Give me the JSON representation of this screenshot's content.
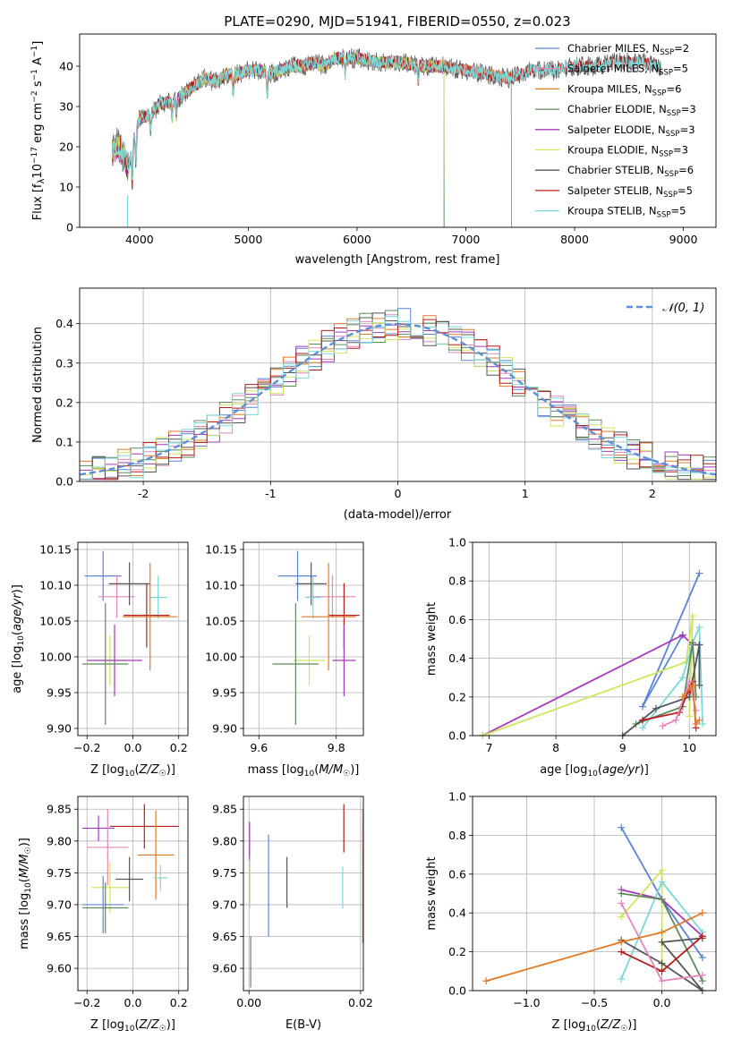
{
  "figure": {
    "title": "PLATE=0290, MJD=51941, FIBERID=0550, z=0.023"
  },
  "chart_data": [
    {
      "id": "spectrum",
      "type": "line",
      "xlabel": "wavelength [Angstrom, rest frame]",
      "ylabel": "Flux [f_λ 10^-17 erg cm^-2 s^-1 A^-1]",
      "xlim": [
        3450,
        9300
      ],
      "ylim": [
        0,
        48
      ],
      "xticks": [
        4000,
        5000,
        6000,
        7000,
        8000,
        9000
      ],
      "yticks": [
        0,
        10,
        20,
        30,
        40
      ],
      "grid": false,
      "legend_position": "top-right",
      "observed_spectrum": {
        "x": [
          3750,
          3800,
          3900,
          3950,
          4000,
          4100,
          4200,
          4300,
          4400,
          4500,
          4600,
          4700,
          4800,
          4900,
          5000,
          5100,
          5200,
          5300,
          5400,
          5500,
          5600,
          5700,
          5800,
          5900,
          6000,
          6200,
          6400,
          6600,
          6800,
          7000,
          7200,
          7400,
          7600,
          7800,
          8000,
          8200,
          8400,
          8600,
          8800
        ],
        "y": [
          18,
          21,
          15,
          22,
          27,
          28,
          31,
          31,
          33,
          35,
          37,
          36,
          38,
          38,
          39,
          39,
          38,
          39,
          40,
          40,
          41,
          40,
          42,
          42,
          42,
          41,
          41,
          40,
          40,
          39,
          38,
          37,
          39,
          39,
          40,
          40,
          41,
          41,
          40
        ]
      },
      "series": [
        {
          "name": "Chabrier MILES, N_SSP=2",
          "color": "#5b84d8",
          "end_wavelength": 7400,
          "dropout_wavelength": null
        },
        {
          "name": "Salpeter MILES, N_SSP=5",
          "color": "#e487bb",
          "end_wavelength": 7400,
          "dropout_wavelength": null
        },
        {
          "name": "Kroupa MILES, N_SSP=6",
          "color": "#e07b26",
          "end_wavelength": 7420,
          "dropout_wavelength": 7420
        },
        {
          "name": "Chabrier ELODIE, N_SSP=3",
          "color": "#5d8a5c",
          "end_wavelength": 6800,
          "dropout_wavelength": 6800
        },
        {
          "name": "Salpeter ELODIE, N_SSP=3",
          "color": "#a33ab9",
          "end_wavelength": 6800,
          "dropout_wavelength": null
        },
        {
          "name": "Kroupa ELODIE, N_SSP=3",
          "color": "#cfe55c",
          "end_wavelength": 6800,
          "dropout_wavelength": 6795
        },
        {
          "name": "Chabrier STELIB, N_SSP=6",
          "color": "#555555",
          "end_wavelength": 8800,
          "dropout_wavelength": null
        },
        {
          "name": "Salpeter STELIB, N_SSP=5",
          "color": "#b81d1d",
          "end_wavelength": 8800,
          "dropout_wavelength": null
        },
        {
          "name": "Kroupa STELIB, N_SSP=5",
          "color": "#7ad8d8",
          "end_wavelength": 8800,
          "dropout_wavelength": null
        }
      ]
    },
    {
      "id": "residuals",
      "type": "bar",
      "xlabel": "(data-model)/error",
      "ylabel": "Normed distribution",
      "xlim": [
        -2.5,
        2.5
      ],
      "ylim": [
        0,
        0.49
      ],
      "xticks": [
        -2,
        -1,
        0,
        1,
        2
      ],
      "yticks": [
        0.0,
        0.1,
        0.2,
        0.3,
        0.4
      ],
      "grid": true,
      "legend": "𝒩(0, 1)",
      "legend_position": "top-right",
      "gaussian_color": "#5b8fd8"
    },
    {
      "id": "age_vs_Z",
      "type": "scatter",
      "xlabel": "Z [log10(Z/Z☉)]",
      "ylabel": "age [log10(age/yr)]",
      "xlim": [
        -0.24,
        0.24
      ],
      "ylim": [
        9.89,
        10.16
      ],
      "xticks": [
        -0.2,
        0.0,
        0.2
      ],
      "xticklabels": [
        "−0.2",
        "0.0",
        "0.2"
      ],
      "yticks": [
        9.9,
        9.95,
        10.0,
        10.05,
        10.1,
        10.15
      ],
      "yticklabels": [
        "9.90",
        "9.95",
        "10.00",
        "10.05",
        "10.10",
        "10.15"
      ],
      "grid": true,
      "points": [
        {
          "color": "#5b84d8",
          "x": -0.13,
          "xerr": 0.08,
          "y": 10.113,
          "yerr": 0.035
        },
        {
          "color": "#e487bb",
          "x": -0.07,
          "xerr": 0.08,
          "y": 10.084,
          "yerr": 0.03
        },
        {
          "color": "#555555",
          "x": -0.015,
          "xerr": 0.09,
          "y": 10.102,
          "yerr": 0.03
        },
        {
          "color": "#7ad8d8",
          "x": 0.11,
          "xerr": 0.04,
          "y": 10.083,
          "yerr": 0.03
        },
        {
          "color": "#b81d1d",
          "x": 0.06,
          "xerr": 0.1,
          "y": 10.058,
          "yerr": 0.045
        },
        {
          "color": "#e07b26",
          "x": 0.075,
          "xerr": 0.12,
          "y": 10.056,
          "yerr": 0.075
        },
        {
          "color": "#cfe55c",
          "x": -0.1,
          "xerr": 0.07,
          "y": 9.995,
          "yerr": 0.035
        },
        {
          "color": "#a33ab9",
          "x": -0.08,
          "xerr": 0.12,
          "y": 9.995,
          "yerr": 0.05
        },
        {
          "color": "#5d8a5c",
          "x": -0.12,
          "xerr": 0.1,
          "y": 9.99,
          "yerr": 0.085
        }
      ]
    },
    {
      "id": "age_vs_mass",
      "type": "scatter",
      "xlabel": "mass [log10(M/M☉)]",
      "ylabel": "",
      "xlim": [
        9.56,
        9.87
      ],
      "ylim": [
        9.89,
        10.16
      ],
      "xticks": [
        9.6,
        9.8
      ],
      "xticklabels": [
        "9.6",
        "9.8"
      ],
      "yticks": [
        9.9,
        9.95,
        10.0,
        10.05,
        10.1,
        10.15
      ],
      "yticklabels": [
        "9.90",
        "9.95",
        "10.00",
        "10.05",
        "10.10",
        "10.15"
      ],
      "grid": true,
      "points": [
        {
          "color": "#5b84d8",
          "x": 9.7,
          "xerr": 0.05,
          "y": 10.113,
          "yerr": 0.035
        },
        {
          "color": "#e487bb",
          "x": 9.79,
          "xerr": 0.06,
          "y": 10.084,
          "yerr": 0.03
        },
        {
          "color": "#555555",
          "x": 9.735,
          "xerr": 0.04,
          "y": 10.102,
          "yerr": 0.03
        },
        {
          "color": "#7ad8d8",
          "x": 9.74,
          "xerr": 0.02,
          "y": 10.083,
          "yerr": 0.03
        },
        {
          "color": "#b81d1d",
          "x": 9.82,
          "xerr": 0.04,
          "y": 10.058,
          "yerr": 0.045
        },
        {
          "color": "#e07b26",
          "x": 9.78,
          "xerr": 0.07,
          "y": 10.056,
          "yerr": 0.075
        },
        {
          "color": "#cfe55c",
          "x": 9.73,
          "xerr": 0.04,
          "y": 9.995,
          "yerr": 0.035
        },
        {
          "color": "#a33ab9",
          "x": 9.82,
          "xerr": 0.03,
          "y": 9.995,
          "yerr": 0.05
        },
        {
          "color": "#5d8a5c",
          "x": 9.695,
          "xerr": 0.06,
          "y": 9.99,
          "yerr": 0.085
        }
      ]
    },
    {
      "id": "mass_vs_Z",
      "type": "scatter",
      "xlabel": "Z [log10(Z/Z☉)]",
      "ylabel": "mass [log10(M/M☉)]",
      "xlim": [
        -0.24,
        0.24
      ],
      "ylim": [
        9.565,
        9.87
      ],
      "xticks": [
        -0.2,
        0.0,
        0.2
      ],
      "xticklabels": [
        "−0.2",
        "0.0",
        "0.2"
      ],
      "yticks": [
        9.6,
        9.65,
        9.7,
        9.75,
        9.8,
        9.85
      ],
      "yticklabels": [
        "9.60",
        "9.65",
        "9.70",
        "9.75",
        "9.80",
        "9.85"
      ],
      "grid": true,
      "points": [
        {
          "color": "#b81d1d",
          "x": 0.05,
          "xerr": 0.15,
          "y": 9.823,
          "yerr": 0.035
        },
        {
          "color": "#a33ab9",
          "x": -0.15,
          "xerr": 0.07,
          "y": 9.82,
          "yerr": 0.02
        },
        {
          "color": "#e487bb",
          "x": -0.11,
          "xerr": 0.09,
          "y": 9.79,
          "yerr": 0.06
        },
        {
          "color": "#e07b26",
          "x": 0.1,
          "xerr": 0.08,
          "y": 9.778,
          "yerr": 0.07
        },
        {
          "color": "#7ad8d8",
          "x": 0.12,
          "xerr": 0.03,
          "y": 9.742,
          "yerr": 0.02
        },
        {
          "color": "#555555",
          "x": -0.015,
          "xerr": 0.06,
          "y": 9.74,
          "yerr": 0.035
        },
        {
          "color": "#cfe55c",
          "x": -0.1,
          "xerr": 0.08,
          "y": 9.727,
          "yerr": 0.04
        },
        {
          "color": "#5b84d8",
          "x": -0.13,
          "xerr": 0.09,
          "y": 9.7,
          "yerr": 0.045
        },
        {
          "color": "#5d8a5c",
          "x": -0.12,
          "xerr": 0.1,
          "y": 9.695,
          "yerr": 0.04
        }
      ]
    },
    {
      "id": "mass_vs_ebv",
      "type": "scatter",
      "xlabel": "E(B-V)",
      "ylabel": "",
      "xlim": [
        -0.001,
        0.0205
      ],
      "ylim": [
        9.565,
        9.87
      ],
      "xticks": [
        0.0,
        0.02
      ],
      "xticklabels": [
        "0.00",
        "0.02"
      ],
      "yticks": [
        9.6,
        9.65,
        9.7,
        9.75,
        9.8,
        9.85
      ],
      "yticklabels": [
        "9.60",
        "9.65",
        "9.70",
        "9.75",
        "9.80",
        "9.85"
      ],
      "grid": true,
      "points": [
        {
          "color": "#a33ab9",
          "x": 0.0001,
          "y": 9.8,
          "yerr": 0.03
        },
        {
          "color": "#cfe55c",
          "x": 0.0002,
          "y": 9.735,
          "yerr": 0.04
        },
        {
          "color": "#5d8a5c",
          "x": 0.0003,
          "y": 9.61,
          "yerr": 0.04
        },
        {
          "color": "#5b84d8",
          "x": 0.0035,
          "y": 9.73,
          "yerr": 0.08
        },
        {
          "color": "#555555",
          "x": 0.0068,
          "y": 9.735,
          "yerr": 0.04
        },
        {
          "color": "#7ad8d8",
          "x": 0.0168,
          "y": 9.727,
          "yerr": 0.033
        },
        {
          "color": "#b81d1d",
          "x": 0.017,
          "y": 9.82,
          "yerr": 0.038
        },
        {
          "color": "#e07b26",
          "x": 0.0204,
          "y": 9.73,
          "yerr": 0.09
        },
        {
          "color": "#e487bb",
          "x": 0.0204,
          "y": 9.82,
          "yerr": 0.03
        }
      ]
    },
    {
      "id": "weight_vs_age",
      "type": "line",
      "xlabel": "age  [log10(age/yr)]",
      "ylabel": "mass weight",
      "xlim": [
        6.75,
        10.4
      ],
      "ylim": [
        0,
        1.0
      ],
      "xticks": [
        7,
        8,
        9,
        10
      ],
      "yticks": [
        0.0,
        0.2,
        0.4,
        0.6,
        0.8,
        1.0
      ],
      "grid": true,
      "series": [
        {
          "color": "#5b84d8",
          "x": [
            10.15,
            9.3,
            9.9
          ],
          "y": [
            0.84,
            0.15,
            0.52
          ]
        },
        {
          "color": "#a33ab9",
          "x": [
            6.9,
            9.9,
            10.05,
            10.15
          ],
          "y": [
            0.0,
            0.52,
            0.47,
            0.47
          ]
        },
        {
          "color": "#cfe55c",
          "x": [
            6.9,
            9.95,
            10.05,
            10.0
          ],
          "y": [
            0.0,
            0.38,
            0.62,
            0.1
          ]
        },
        {
          "color": "#7ad8d8",
          "x": [
            9.3,
            9.9,
            10.05,
            10.15,
            10.2
          ],
          "y": [
            0.04,
            0.3,
            0.48,
            0.56,
            0.06
          ]
        },
        {
          "color": "#5d8a5c",
          "x": [
            9.2,
            9.9,
            10.05,
            10.1
          ],
          "y": [
            0.06,
            0.15,
            0.48,
            0.2
          ]
        },
        {
          "color": "#555555",
          "x": [
            9.0,
            9.5,
            10.0,
            10.15,
            10.15
          ],
          "y": [
            0.0,
            0.14,
            0.2,
            0.47,
            0.26
          ]
        },
        {
          "color": "#b81d1d",
          "x": [
            9.3,
            9.85,
            10.0,
            10.05,
            10.1
          ],
          "y": [
            0.08,
            0.12,
            0.24,
            0.28,
            0.04
          ]
        },
        {
          "color": "#e487bb",
          "x": [
            9.6,
            9.8,
            10.0,
            10.1
          ],
          "y": [
            0.05,
            0.08,
            0.28,
            0.13
          ]
        },
        {
          "color": "#e07b26",
          "x": [
            9.9,
            10.05,
            10.1,
            10.15
          ],
          "y": [
            0.2,
            0.26,
            0.06,
            0.08
          ]
        }
      ]
    },
    {
      "id": "weight_vs_Z",
      "type": "line",
      "xlabel": "Z [log10(Z/Z☉)]",
      "ylabel": "mass weight",
      "xlim": [
        -1.4,
        0.4
      ],
      "ylim": [
        0,
        1.0
      ],
      "xticks": [
        -1.0,
        -0.5,
        0.0
      ],
      "xticklabels": [
        "−1.0",
        "−0.5",
        "0.0"
      ],
      "yticks": [
        0.0,
        0.2,
        0.4,
        0.6,
        0.8,
        1.0
      ],
      "grid": true,
      "series": [
        {
          "color": "#5b84d8",
          "x": [
            -0.3,
            0.0,
            0.3
          ],
          "y": [
            0.84,
            0.47,
            0.17
          ]
        },
        {
          "color": "#a33ab9",
          "x": [
            -0.3,
            0.0,
            0.3
          ],
          "y": [
            0.52,
            0.47,
            0.28
          ]
        },
        {
          "color": "#cfe55c",
          "x": [
            -0.3,
            0.0,
            0.0
          ],
          "y": [
            0.38,
            0.62,
            0.1
          ]
        },
        {
          "color": "#7ad8d8",
          "x": [
            -0.3,
            0.0,
            0.3
          ],
          "y": [
            0.06,
            0.56,
            0.3
          ]
        },
        {
          "color": "#5d8a5c",
          "x": [
            -0.3,
            0.0,
            0.3
          ],
          "y": [
            0.5,
            0.47,
            0.05
          ]
        },
        {
          "color": "#555555",
          "x": [
            -0.3,
            0.0,
            0.3,
            0.0,
            0.3
          ],
          "y": [
            0.26,
            0.14,
            0.0,
            0.25,
            0.27
          ]
        },
        {
          "color": "#b81d1d",
          "x": [
            -0.3,
            0.0,
            0.3
          ],
          "y": [
            0.2,
            0.1,
            0.28
          ]
        },
        {
          "color": "#e487bb",
          "x": [
            -0.3,
            0.0,
            0.3
          ],
          "y": [
            0.45,
            0.05,
            0.08
          ]
        },
        {
          "color": "#e07b26",
          "x": [
            -1.3,
            -0.3,
            0.0,
            0.3
          ],
          "y": [
            0.05,
            0.25,
            0.3,
            0.4
          ]
        }
      ]
    }
  ]
}
